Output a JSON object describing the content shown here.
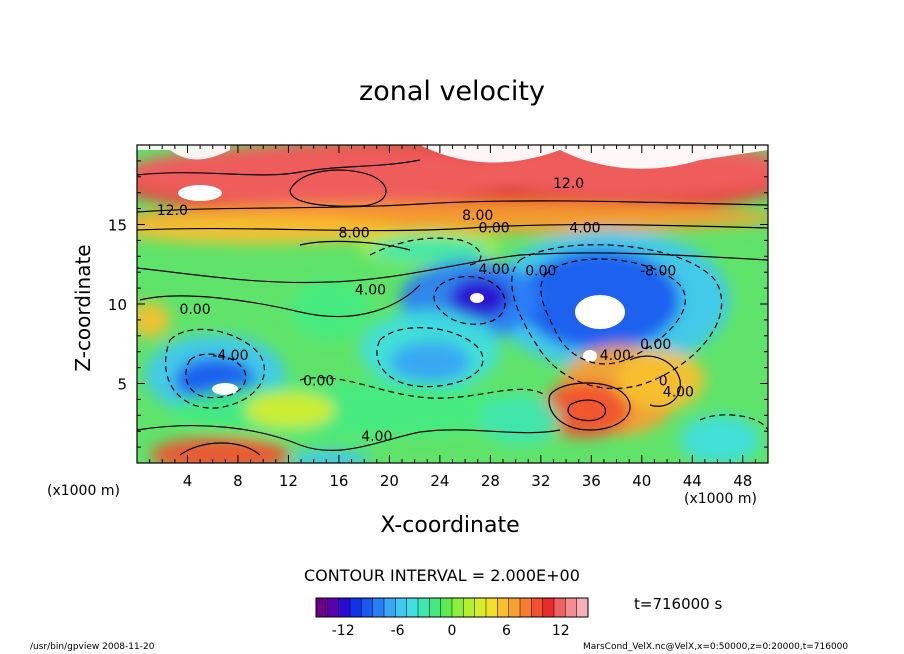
{
  "chart_data": {
    "type": "heatmap",
    "title": "zonal velocity",
    "xlabel": "X-coordinate",
    "ylabel": "Z-coordinate",
    "x_unit_label": "(x1000 m)",
    "y_unit_label": "(x1000 m)",
    "xlim": [
      0,
      50
    ],
    "ylim": [
      0,
      20
    ],
    "x_ticks": [
      4,
      8,
      12,
      16,
      20,
      24,
      28,
      32,
      36,
      40,
      44,
      48
    ],
    "y_ticks": [
      5,
      10,
      15
    ],
    "contour_interval_text": "CONTOUR INTERVAL = 2.000E+00",
    "contour_interval": 2.0,
    "time_text": "t=716000 s",
    "colorbar": {
      "min": -15,
      "max": 15,
      "ticks": [
        -12,
        -6,
        0,
        6,
        12
      ]
    },
    "contour_labels": [
      {
        "text": "12.0",
        "x": 2.8,
        "y": 15.9
      },
      {
        "text": "12.0",
        "x": 34.2,
        "y": 17.6
      },
      {
        "text": "8.00",
        "x": 27.0,
        "y": 15.6
      },
      {
        "text": "8.00",
        "x": 17.2,
        "y": 14.5
      },
      {
        "text": "4.00",
        "x": 35.5,
        "y": 14.8
      },
      {
        "text": "0.00",
        "x": 28.3,
        "y": 14.8
      },
      {
        "text": "4.00",
        "x": 28.3,
        "y": 12.2
      },
      {
        "text": "0.00",
        "x": 32.0,
        "y": 12.1
      },
      {
        "text": "4.00",
        "x": 18.5,
        "y": 10.9
      },
      {
        "text": "-8.00",
        "x": 41.3,
        "y": 12.1
      },
      {
        "text": "0.00",
        "x": 4.6,
        "y": 9.7
      },
      {
        "text": "-4.00",
        "x": 7.4,
        "y": 6.8
      },
      {
        "text": "0.00",
        "x": 14.4,
        "y": 5.2
      },
      {
        "text": "4.00",
        "x": 37.9,
        "y": 6.8
      },
      {
        "text": "0.00",
        "x": 41.1,
        "y": 7.5
      },
      {
        "text": "0",
        "x": 41.7,
        "y": 5.2
      },
      {
        "text": "4.00",
        "x": 42.9,
        "y": 4.5
      },
      {
        "text": "4.00",
        "x": 19.0,
        "y": 1.7
      }
    ],
    "colorbar_colors": [
      "#6a0085",
      "#5a00b0",
      "#2a0cd0",
      "#1032e8",
      "#1a58f0",
      "#2a7ef5",
      "#3aa4f5",
      "#40c8f2",
      "#40e0e0",
      "#3fe6b0",
      "#44ea80",
      "#5cec50",
      "#8cf03a",
      "#b4f030",
      "#d8ee2c",
      "#f2e02a",
      "#f8c030",
      "#f8a030",
      "#f67c30",
      "#f25030",
      "#ea2a2a",
      "#f06060",
      "#f48c90",
      "#f6b0b8"
    ]
  },
  "footer": {
    "left": "/usr/bin/gpview  2008-11-20",
    "right": "MarsCond_VelX.nc@VelX,x=0:50000,z=0:20000,t=716000"
  }
}
